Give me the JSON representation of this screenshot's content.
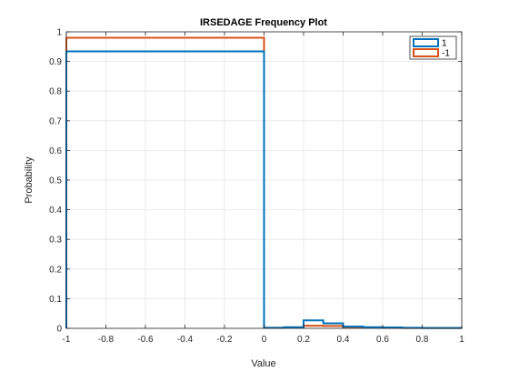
{
  "chart_data": {
    "type": "histogram",
    "title": "IRSEDAGE Frequency Plot",
    "xlabel": "Value",
    "ylabel": "Probability",
    "xlim": [
      -1,
      1
    ],
    "ylim": [
      0,
      1
    ],
    "xticks": [
      -1,
      -0.8,
      -0.6,
      -0.4,
      -0.2,
      0,
      0.2,
      0.4,
      0.6,
      0.8,
      1
    ],
    "xtick_labels": [
      "-1",
      "-0.8",
      "-0.6",
      "-0.4",
      "-0.2",
      "0",
      "0.2",
      "0.4",
      "0.6",
      "0.8",
      "1"
    ],
    "yticks": [
      0,
      0.1,
      0.2,
      0.3,
      0.4,
      0.5,
      0.6,
      0.7,
      0.8,
      0.9,
      1
    ],
    "ytick_labels": [
      "0",
      "0.1",
      "0.2",
      "0.3",
      "0.4",
      "0.5",
      "0.6",
      "0.7",
      "0.8",
      "0.9",
      "1"
    ],
    "grid": true,
    "legend_position": "top-right",
    "series": [
      {
        "name": "1",
        "color": "#0072BD",
        "bin_edges": [
          -1,
          0,
          0.1,
          0.2,
          0.3,
          0.4,
          0.5,
          0.6,
          0.7,
          0.8,
          0.9,
          1
        ],
        "values": [
          0.934,
          0.002,
          0.004,
          0.027,
          0.017,
          0.006,
          0.004,
          0.003,
          0.002,
          0.001,
          0.001
        ]
      },
      {
        "name": "-1",
        "color": "#D95319",
        "bin_edges": [
          -1,
          0,
          0.1,
          0.2,
          0.3,
          0.4,
          0.5,
          0.6,
          0.7,
          0.8,
          0.9,
          1
        ],
        "values": [
          0.98,
          0.002,
          0.003,
          0.009,
          0.008,
          0.004,
          0.003,
          0.002,
          0.001,
          0.001,
          0.001
        ]
      }
    ]
  }
}
